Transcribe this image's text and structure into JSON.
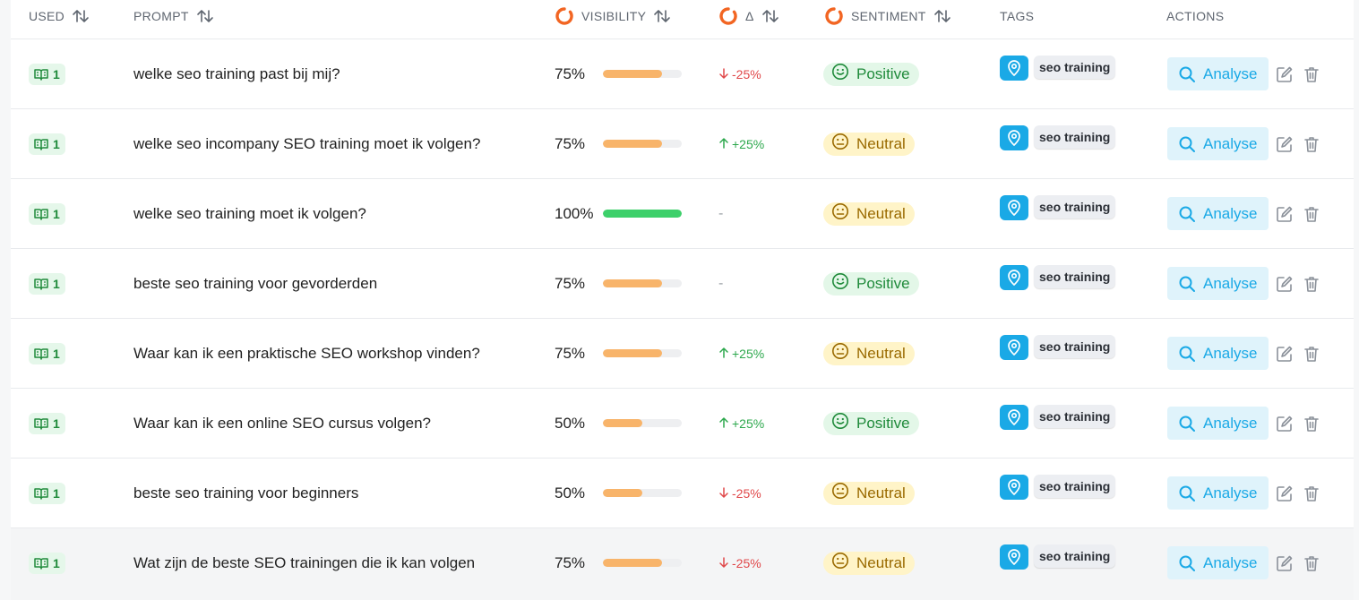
{
  "header": {
    "used": "USED",
    "prompt": "PROMPT",
    "visibility": "VISIBILITY",
    "delta": "Δ",
    "sentiment": "SENTIMENT",
    "tags": "TAGS",
    "actions": "ACTIONS"
  },
  "icons": {
    "sort": "sort-arrows-icon",
    "loading": "loading-spinner-icon",
    "book": "book-open-icon",
    "pin": "map-pin-icon",
    "search": "search-icon",
    "edit": "edit-icon",
    "delete": "trash-icon"
  },
  "colors": {
    "accent": "#1aa9e6",
    "spinner": "#f26522",
    "bar_partial": "#f8b46a",
    "bar_full": "#3dd06a",
    "positive": "#1f8a3a",
    "negative": "#e0484a"
  },
  "analyse_label": "Analyse",
  "rows": [
    {
      "used": "1",
      "prompt": "welke seo training past bij mij?",
      "visibility": "75%",
      "visibility_value": 75,
      "delta": "-25%",
      "delta_dir": "down",
      "sentiment": "Positive",
      "tag": "seo training"
    },
    {
      "used": "1",
      "prompt": "welke seo incompany SEO training moet ik volgen?",
      "visibility": "75%",
      "visibility_value": 75,
      "delta": "+25%",
      "delta_dir": "up",
      "sentiment": "Neutral",
      "tag": "seo training"
    },
    {
      "used": "1",
      "prompt": "welke seo training moet ik volgen?",
      "visibility": "100%",
      "visibility_value": 100,
      "delta": "-",
      "delta_dir": "none",
      "sentiment": "Neutral",
      "tag": "seo training"
    },
    {
      "used": "1",
      "prompt": "beste seo training voor gevorderden",
      "visibility": "75%",
      "visibility_value": 75,
      "delta": "-",
      "delta_dir": "none",
      "sentiment": "Positive",
      "tag": "seo training"
    },
    {
      "used": "1",
      "prompt": "Waar kan ik een praktische SEO workshop vinden?",
      "visibility": "75%",
      "visibility_value": 75,
      "delta": "+25%",
      "delta_dir": "up",
      "sentiment": "Neutral",
      "tag": "seo training"
    },
    {
      "used": "1",
      "prompt": "Waar kan ik een online SEO cursus volgen?",
      "visibility": "50%",
      "visibility_value": 50,
      "delta": "+25%",
      "delta_dir": "up",
      "sentiment": "Positive",
      "tag": "seo training"
    },
    {
      "used": "1",
      "prompt": "beste seo training voor beginners",
      "visibility": "50%",
      "visibility_value": 50,
      "delta": "-25%",
      "delta_dir": "down",
      "sentiment": "Neutral",
      "tag": "seo training"
    },
    {
      "used": "1",
      "prompt": "Wat zijn de beste SEO trainingen die ik kan volgen",
      "visibility": "75%",
      "visibility_value": 75,
      "delta": "-25%",
      "delta_dir": "down",
      "sentiment": "Neutral",
      "tag": "seo training"
    }
  ]
}
